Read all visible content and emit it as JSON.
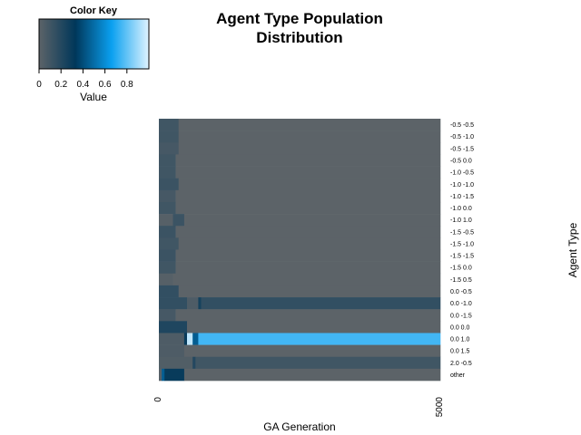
{
  "chart_data": {
    "type": "heatmap",
    "title_lines": [
      "Agent Type Population",
      "Distribution"
    ],
    "xlabel": "GA Generation",
    "ylabel": "Agent Type",
    "x_ticks": [
      "0",
      "5000"
    ],
    "xlim": [
      0,
      5000
    ],
    "color_key": {
      "title": "Color Key",
      "xlabel": "Value",
      "ticks": [
        "0",
        "0.2",
        "0.4",
        "0.6",
        "0.8"
      ],
      "tick_values": [
        0,
        0.2,
        0.4,
        0.6,
        0.8
      ],
      "range": [
        0,
        1
      ],
      "colors": [
        "#5c6368",
        "#00375a",
        "#0aa0f0",
        "#dff3ff"
      ],
      "color_stops": [
        0,
        0.33,
        0.66,
        1
      ]
    },
    "rows": [
      {
        "label": "-0.5 -0.5",
        "segments": [
          {
            "from": 0,
            "to": 350,
            "value": 0.1
          },
          {
            "from": 350,
            "to": 5000,
            "value": 0.0
          }
        ]
      },
      {
        "label": "-0.5 -1.0",
        "segments": [
          {
            "from": 0,
            "to": 350,
            "value": 0.1
          },
          {
            "from": 350,
            "to": 5000,
            "value": 0.0
          }
        ]
      },
      {
        "label": "-0.5 -1.5",
        "segments": [
          {
            "from": 0,
            "to": 350,
            "value": 0.08
          },
          {
            "from": 350,
            "to": 5000,
            "value": 0.0
          }
        ]
      },
      {
        "label": "-0.5 0.0",
        "segments": [
          {
            "from": 0,
            "to": 300,
            "value": 0.1
          },
          {
            "from": 300,
            "to": 5000,
            "value": 0.0
          }
        ]
      },
      {
        "label": "-1.0 -0.5",
        "segments": [
          {
            "from": 0,
            "to": 300,
            "value": 0.1
          },
          {
            "from": 300,
            "to": 5000,
            "value": 0.0
          }
        ]
      },
      {
        "label": "-1.0 -1.0",
        "segments": [
          {
            "from": 0,
            "to": 350,
            "value": 0.12
          },
          {
            "from": 350,
            "to": 5000,
            "value": 0.0
          }
        ]
      },
      {
        "label": "-1.0 -1.5",
        "segments": [
          {
            "from": 0,
            "to": 300,
            "value": 0.08
          },
          {
            "from": 300,
            "to": 5000,
            "value": 0.0
          }
        ]
      },
      {
        "label": "-1.0 0.0",
        "segments": [
          {
            "from": 0,
            "to": 300,
            "value": 0.1
          },
          {
            "from": 300,
            "to": 5000,
            "value": 0.0
          }
        ]
      },
      {
        "label": "-1.0 1.0",
        "segments": [
          {
            "from": 0,
            "to": 250,
            "value": 0.02
          },
          {
            "from": 250,
            "to": 450,
            "value": 0.12
          },
          {
            "from": 450,
            "to": 5000,
            "value": 0.0
          }
        ]
      },
      {
        "label": "-1.5 -0.5",
        "segments": [
          {
            "from": 0,
            "to": 300,
            "value": 0.12
          },
          {
            "from": 300,
            "to": 5000,
            "value": 0.0
          }
        ]
      },
      {
        "label": "-1.5 -1.0",
        "segments": [
          {
            "from": 0,
            "to": 350,
            "value": 0.1
          },
          {
            "from": 350,
            "to": 5000,
            "value": 0.0
          }
        ]
      },
      {
        "label": "-1.5 -1.5",
        "segments": [
          {
            "from": 0,
            "to": 300,
            "value": 0.12
          },
          {
            "from": 300,
            "to": 5000,
            "value": 0.0
          }
        ]
      },
      {
        "label": "-1.5 0.0",
        "segments": [
          {
            "from": 0,
            "to": 300,
            "value": 0.1
          },
          {
            "from": 300,
            "to": 5000,
            "value": 0.0
          }
        ]
      },
      {
        "label": "-1.5 0.5",
        "segments": [
          {
            "from": 0,
            "to": 250,
            "value": 0.02
          },
          {
            "from": 250,
            "to": 5000,
            "value": 0.0
          }
        ]
      },
      {
        "label": "0.0 -0.5",
        "segments": [
          {
            "from": 0,
            "to": 350,
            "value": 0.15
          },
          {
            "from": 350,
            "to": 5000,
            "value": 0.0
          }
        ]
      },
      {
        "label": "0.0 -1.0",
        "segments": [
          {
            "from": 0,
            "to": 500,
            "value": 0.15
          },
          {
            "from": 500,
            "to": 700,
            "value": 0.05
          },
          {
            "from": 700,
            "to": 750,
            "value": 0.25
          },
          {
            "from": 750,
            "to": 5000,
            "value": 0.15
          }
        ]
      },
      {
        "label": "0.0 -1.5",
        "segments": [
          {
            "from": 0,
            "to": 300,
            "value": 0.08
          },
          {
            "from": 300,
            "to": 5000,
            "value": 0.0
          }
        ]
      },
      {
        "label": "0.0 0.0",
        "segments": [
          {
            "from": 0,
            "to": 500,
            "value": 0.22
          },
          {
            "from": 500,
            "to": 5000,
            "value": 0.0
          }
        ]
      },
      {
        "label": "0.0 1.0",
        "segments": [
          {
            "from": 0,
            "to": 450,
            "value": 0.05
          },
          {
            "from": 450,
            "to": 500,
            "value": 0.3
          },
          {
            "from": 500,
            "to": 600,
            "value": 0.95
          },
          {
            "from": 600,
            "to": 700,
            "value": 0.45
          },
          {
            "from": 700,
            "to": 5000,
            "value": 0.75
          }
        ]
      },
      {
        "label": "0.0 1.5",
        "segments": [
          {
            "from": 0,
            "to": 450,
            "value": 0.05
          },
          {
            "from": 450,
            "to": 5000,
            "value": 0.0
          }
        ]
      },
      {
        "label": "2.0 -0.5",
        "segments": [
          {
            "from": 0,
            "to": 600,
            "value": 0.04
          },
          {
            "from": 600,
            "to": 650,
            "value": 0.2
          },
          {
            "from": 650,
            "to": 5000,
            "value": 0.1
          }
        ]
      },
      {
        "label": "other",
        "segments": [
          {
            "from": 0,
            "to": 50,
            "value": 0.02
          },
          {
            "from": 50,
            "to": 100,
            "value": 0.45
          },
          {
            "from": 100,
            "to": 450,
            "value": 0.3
          },
          {
            "from": 450,
            "to": 5000,
            "value": 0.0
          }
        ]
      }
    ]
  }
}
